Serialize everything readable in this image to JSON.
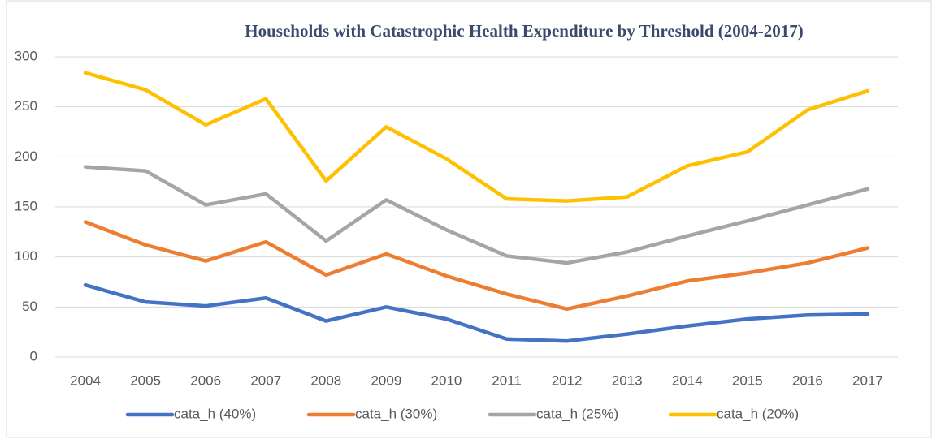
{
  "chart_data": {
    "type": "line",
    "title": "Households with Catastrophic Health Expenditure by Threshold (2004-2017)",
    "categories": [
      "2004",
      "2005",
      "2006",
      "2007",
      "2008",
      "2009",
      "2010",
      "2011",
      "2012",
      "2013",
      "2014",
      "2015",
      "2016",
      "2017"
    ],
    "series": [
      {
        "name": "cata_h (40%)",
        "color": "#4472c4",
        "values": [
          72,
          55,
          51,
          59,
          36,
          50,
          38,
          18,
          16,
          23,
          31,
          38,
          42,
          43
        ]
      },
      {
        "name": "cata_h (30%)",
        "color": "#ed7d31",
        "values": [
          135,
          112,
          96,
          115,
          82,
          103,
          81,
          63,
          48,
          61,
          76,
          84,
          94,
          109
        ]
      },
      {
        "name": "cata_h (25%)",
        "color": "#a5a5a5",
        "values": [
          190,
          186,
          152,
          163,
          116,
          157,
          127,
          101,
          94,
          105,
          121,
          136,
          152,
          168
        ]
      },
      {
        "name": "cata_h (20%)",
        "color": "#ffc000",
        "values": [
          284,
          267,
          232,
          258,
          176,
          230,
          198,
          158,
          156,
          160,
          191,
          205,
          247,
          266
        ]
      }
    ],
    "ylim": [
      0,
      300
    ],
    "yticks": [
      0,
      50,
      100,
      150,
      200,
      250,
      300
    ],
    "grid": true,
    "legend": "bottom"
  }
}
